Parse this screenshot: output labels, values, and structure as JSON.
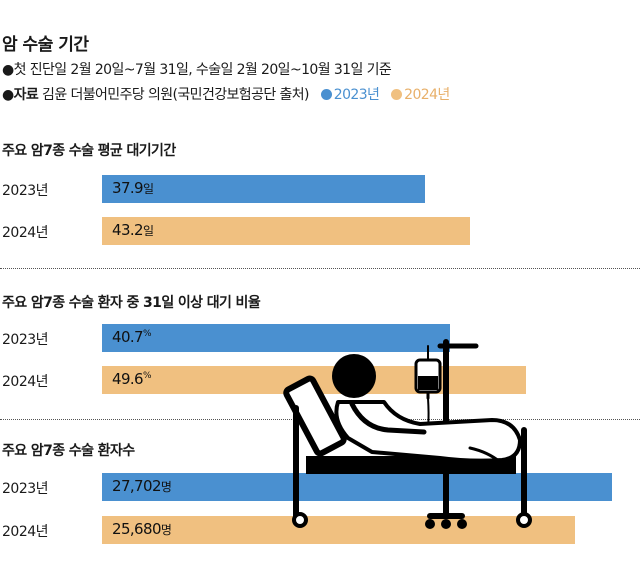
{
  "header": {
    "title": "암 수술 기간",
    "note_line1": "●첫 진단일 2월 20일~7월 31일, 수술일 2월 20일~10월 31일 기준",
    "source_label": "●자료",
    "source_text": " 김윤 더불어민주당 의원(국민건강보험공단 출처)",
    "legend": [
      {
        "label": "2023년",
        "color": "#4a90d0"
      },
      {
        "label": "2024년",
        "color": "#f0c080"
      }
    ]
  },
  "chart_data": [
    {
      "type": "bar",
      "title": "주요 암7종 수술 평균 대기기간",
      "categories": [
        "2023년",
        "2024년"
      ],
      "values": [
        37.9,
        43.2
      ],
      "value_labels": [
        "37.9",
        "43.2"
      ],
      "unit": "일",
      "colors": [
        "#4a90d0",
        "#f0c080"
      ]
    },
    {
      "type": "bar",
      "title": "주요 암7종 수술 환자 중 31일 이상 대기 비율",
      "categories": [
        "2023년",
        "2024년"
      ],
      "values": [
        40.7,
        49.6
      ],
      "value_labels": [
        "40.7",
        "49.6"
      ],
      "unit": "%",
      "colors": [
        "#4a90d0",
        "#f0c080"
      ]
    },
    {
      "type": "bar",
      "title": "주요 암7종 수술 환자수",
      "categories": [
        "2023년",
        "2024년"
      ],
      "values": [
        27702,
        25680
      ],
      "value_labels": [
        "27,702",
        "25,680"
      ],
      "unit": "명",
      "colors": [
        "#4a90d0",
        "#f0c080"
      ]
    }
  ],
  "illustration": {
    "icon": "hospital-bed-patient-iv-icon"
  }
}
